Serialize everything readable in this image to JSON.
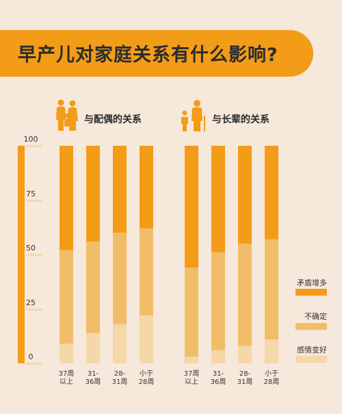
{
  "title": "早产儿对家庭关系有什么影响?",
  "colors": {
    "background": "#f6e8da",
    "accent": "#f39c18",
    "conflict": "#f39c18",
    "uncertain": "#f2bd68",
    "better": "#f5d7a8"
  },
  "icons": {
    "spouse": "family-icon",
    "elders": "elderly-icon"
  },
  "chart_data": {
    "type": "bar",
    "stacked": true,
    "percent": true,
    "ylim": [
      0,
      100
    ],
    "yticks": [
      0,
      25,
      50,
      75,
      100
    ],
    "legend": [
      "矛盾增多",
      "不确定",
      "感情变好"
    ],
    "legend_position": "right",
    "groups": [
      {
        "title": "与配偶的关系",
        "categories": [
          [
            "37周",
            "以上"
          ],
          [
            "31-",
            "36周"
          ],
          [
            "28-",
            "31周"
          ],
          [
            "小于",
            "28周"
          ]
        ],
        "series": [
          {
            "name": "感情变好",
            "values": [
              9,
              14,
              18,
              22
            ]
          },
          {
            "name": "不确定",
            "values": [
              43,
              42,
              42,
              40
            ]
          },
          {
            "name": "矛盾增多",
            "values": [
              48,
              44,
              40,
              38
            ]
          }
        ]
      },
      {
        "title": "与长辈的关系",
        "categories": [
          [
            "37周",
            "以上"
          ],
          [
            "31-",
            "36周"
          ],
          [
            "28-",
            "31周"
          ],
          [
            "小于",
            "28周"
          ]
        ],
        "series": [
          {
            "name": "感情变好",
            "values": [
              3,
              6,
              8,
              11
            ]
          },
          {
            "name": "不确定",
            "values": [
              41,
              45,
              47,
              46
            ]
          },
          {
            "name": "矛盾增多",
            "values": [
              56,
              49,
              45,
              43
            ]
          }
        ]
      }
    ]
  }
}
